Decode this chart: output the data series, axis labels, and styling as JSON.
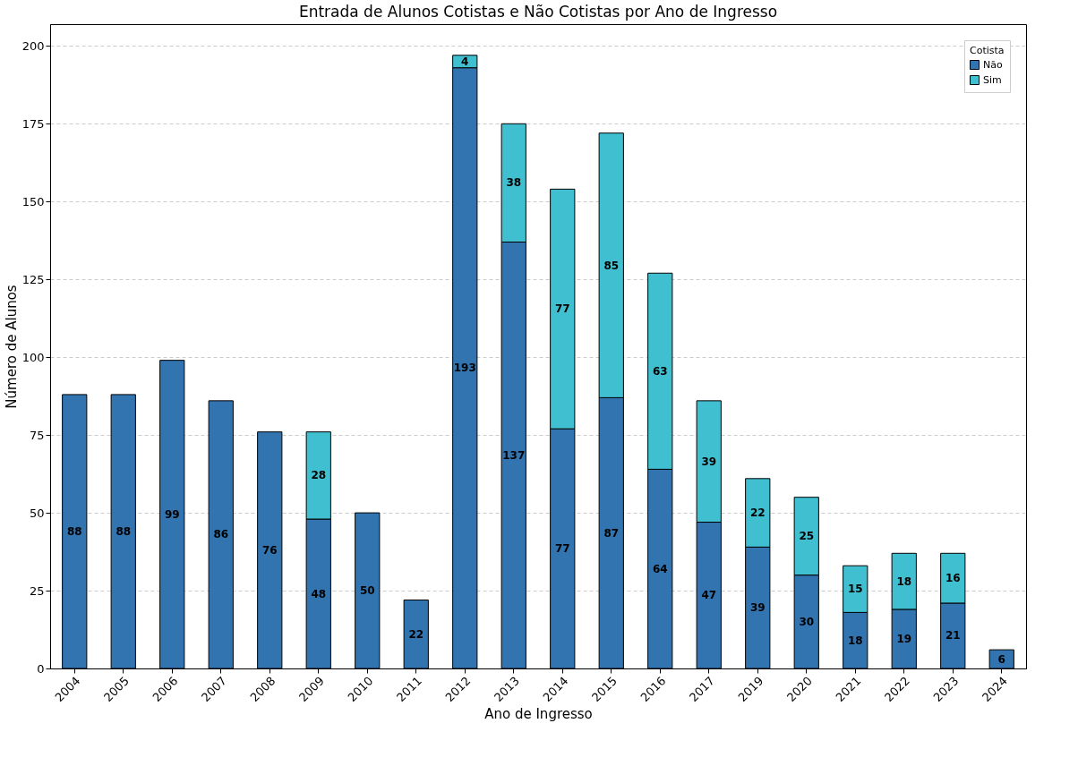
{
  "chart_data": {
    "type": "bar",
    "title": "Entrada de Alunos Cotistas e Não Cotistas por Ano de Ingresso",
    "xlabel": "Ano de Ingresso",
    "ylabel": "Número de Alunos",
    "legend_title": "Cotista",
    "categories": [
      "2004",
      "2005",
      "2006",
      "2007",
      "2008",
      "2009",
      "2010",
      "2011",
      "2012",
      "2013",
      "2014",
      "2015",
      "2016",
      "2017",
      "2019",
      "2020",
      "2021",
      "2022",
      "2023",
      "2024"
    ],
    "series": [
      {
        "name": "Não",
        "color": "#3274b0",
        "values": [
          88,
          88,
          99,
          86,
          76,
          48,
          50,
          22,
          193,
          137,
          77,
          87,
          64,
          47,
          39,
          30,
          18,
          19,
          21,
          6
        ]
      },
      {
        "name": "Sim",
        "color": "#40bfd0",
        "values": [
          null,
          null,
          null,
          null,
          null,
          28,
          null,
          null,
          4,
          38,
          77,
          85,
          63,
          39,
          22,
          25,
          15,
          18,
          16,
          null
        ]
      }
    ],
    "stacked": true,
    "data_labels": true,
    "ylim": [
      0,
      207
    ],
    "yticks": [
      0,
      25,
      50,
      75,
      100,
      125,
      150,
      175,
      200
    ],
    "grid": "y",
    "legend": "top right"
  }
}
